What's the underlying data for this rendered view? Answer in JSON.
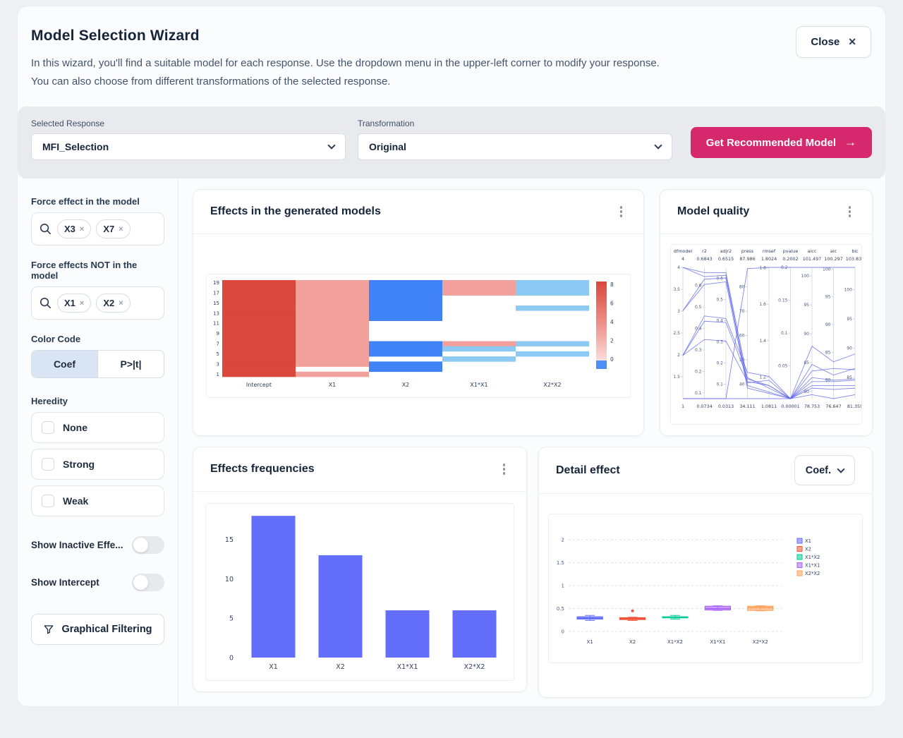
{
  "header": {
    "title": "Model Selection Wizard",
    "description_line1": "In this wizard, you'll find a suitable model for each response. Use the dropdown menu in the upper-left corner to modify your response.",
    "description_line2": "You can also choose from different transformations of the selected response.",
    "close_label": "Close",
    "close_icon": "✕"
  },
  "controls": {
    "accent_color": "#d6296d",
    "selected_response": {
      "label": "Selected Response",
      "value": "MFI_Selection"
    },
    "transformation": {
      "label": "Transformation",
      "value": "Original"
    },
    "get_model_label": "Get Recommended  Model",
    "get_model_arrow": "→"
  },
  "sidebar": {
    "force_in": {
      "label": "Force effect in the model",
      "chips": [
        "X3",
        "X7"
      ],
      "remove_icon": "×"
    },
    "force_out": {
      "label": "Force effects NOT in the model",
      "chips": [
        "X1",
        "X2"
      ],
      "remove_icon": "×"
    },
    "color_code": {
      "label": "Color Code",
      "options": [
        "Coef",
        "P>|t|"
      ],
      "selected": "Coef"
    },
    "heredity": {
      "label": "Heredity",
      "options": [
        {
          "label": "None",
          "checked": false
        },
        {
          "label": "Strong",
          "checked": false
        },
        {
          "label": "Weak",
          "checked": false
        }
      ]
    },
    "toggles": [
      {
        "label": "Show Inactive Effe...",
        "on": false
      },
      {
        "label": "Show Intercept",
        "on": false
      }
    ],
    "graphical_filtering_label": "Graphical Filtering"
  },
  "cards": {
    "effects_models": {
      "title": "Effects in the generated models"
    },
    "model_quality": {
      "title": "Model quality"
    },
    "effects_frequencies": {
      "title": "Effects frequencies"
    },
    "detail_effect": {
      "title": "Detail effect",
      "dropdown_value": "Coef."
    }
  },
  "chart_data": [
    {
      "id": "effects-heatmap",
      "type": "heatmap",
      "title": "Effects in the generated models",
      "x_categories": [
        "Intercept",
        "X1",
        "X2",
        "X1*X1",
        "X2*X2"
      ],
      "y_tick_labels": [
        19,
        17,
        15,
        13,
        11,
        9,
        7,
        5,
        3,
        1
      ],
      "n_rows": 19,
      "color_key": {
        "r": "#d9473d",
        "p": "#f1a09b",
        "b": "#3f83f6",
        "l": "#8cc9f3",
        "w": "#ffffff"
      },
      "matrix_rows_top_to_bottom": [
        [
          "r",
          "p",
          "b",
          "p",
          "l"
        ],
        [
          "r",
          "p",
          "b",
          "p",
          "l"
        ],
        [
          "r",
          "p",
          "b",
          "p",
          "l"
        ],
        [
          "r",
          "p",
          "b",
          "w",
          "w"
        ],
        [
          "r",
          "p",
          "b",
          "w",
          "w"
        ],
        [
          "r",
          "p",
          "b",
          "w",
          "l"
        ],
        [
          "r",
          "p",
          "b",
          "w",
          "w"
        ],
        [
          "r",
          "p",
          "b",
          "w",
          "w"
        ],
        [
          "r",
          "p",
          "w",
          "w",
          "w"
        ],
        [
          "r",
          "p",
          "w",
          "w",
          "w"
        ],
        [
          "r",
          "p",
          "w",
          "w",
          "w"
        ],
        [
          "r",
          "p",
          "w",
          "w",
          "w"
        ],
        [
          "r",
          "p",
          "b",
          "p",
          "l"
        ],
        [
          "r",
          "p",
          "b",
          "l",
          "w"
        ],
        [
          "r",
          "p",
          "b",
          "w",
          "l"
        ],
        [
          "r",
          "p",
          "w",
          "l",
          "w"
        ],
        [
          "r",
          "p",
          "b",
          "w",
          "w"
        ],
        [
          "r",
          "w",
          "b",
          "w",
          "w"
        ],
        [
          "r",
          "p",
          "w",
          "w",
          "w"
        ]
      ],
      "colorbar": {
        "ticks": [
          8,
          6,
          4,
          2,
          0
        ],
        "top_color": "#d9473d",
        "mid_color": "#ee938c",
        "zero_color": "#fbdcda",
        "below_zero_color": "#4a90f5"
      }
    },
    {
      "id": "model-quality-parcoords",
      "type": "line",
      "variant": "parallel-coordinates",
      "line_color": "#5a62e8",
      "axes": [
        {
          "name": "dfmodel",
          "max_label": "4",
          "min_label": "1",
          "range": [
            1,
            4
          ],
          "ticks": [
            1.5,
            2,
            2.5,
            3,
            3.5,
            4
          ]
        },
        {
          "name": "r2",
          "max_label": "0.6843",
          "min_label": "0.0734",
          "range": [
            0.0734,
            0.6843
          ],
          "ticks": [
            0.1,
            0.2,
            0.3,
            0.4,
            0.5,
            0.6
          ]
        },
        {
          "name": "adjr2",
          "max_label": "0.6515",
          "min_label": "0.0313",
          "range": [
            0.0313,
            0.6515
          ],
          "ticks": [
            0.1,
            0.2,
            0.3,
            0.4,
            0.5,
            0.6
          ]
        },
        {
          "name": "press",
          "max_label": "87.986",
          "min_label": "34.111",
          "range": [
            34.111,
            87.986
          ],
          "ticks": [
            40,
            50,
            60,
            70,
            80
          ]
        },
        {
          "name": "rmsef",
          "max_label": "1.8024",
          "min_label": "1.0811",
          "range": [
            1.0811,
            1.8024
          ],
          "ticks": [
            1.2,
            1.4,
            1.6,
            1.8
          ]
        },
        {
          "name": "pvalue",
          "max_label": "0.2002",
          "min_label": "0.00001",
          "range": [
            1e-05,
            0.2002
          ],
          "ticks": [
            0.05,
            0.1,
            0.15,
            0.2
          ]
        },
        {
          "name": "aicc",
          "max_label": "101.497",
          "min_label": "78.753",
          "range": [
            78.753,
            101.497
          ],
          "ticks": [
            80,
            85,
            90,
            95,
            100
          ]
        },
        {
          "name": "aic",
          "max_label": "100.297",
          "min_label": "76.647",
          "range": [
            76.647,
            100.297
          ],
          "ticks": [
            80,
            85,
            90,
            95,
            100
          ]
        },
        {
          "name": "bic",
          "max_label": "103.832",
          "min_label": "81.359",
          "range": [
            81.359,
            103.832
          ],
          "ticks": [
            85,
            90,
            95,
            100
          ]
        }
      ],
      "lines_normalized": [
        [
          1.0,
          0.96,
          0.96,
          0.15,
          0.1,
          0.0,
          0.08,
          0.07,
          0.08
        ],
        [
          1.0,
          0.93,
          0.94,
          0.1,
          0.05,
          0.0,
          0.13,
          0.13,
          0.14
        ],
        [
          0.67,
          0.91,
          0.92,
          0.12,
          0.14,
          0.0,
          0.1,
          0.1,
          0.1
        ],
        [
          0.67,
          0.87,
          0.89,
          0.08,
          0.04,
          0.0,
          0.21,
          0.23,
          0.22
        ],
        [
          0.33,
          0.63,
          0.61,
          0.2,
          0.17,
          0.0,
          0.4,
          0.28,
          0.34
        ],
        [
          0.33,
          0.59,
          0.58,
          0.16,
          0.08,
          0.0,
          0.26,
          0.18,
          0.23
        ],
        [
          0.33,
          0.45,
          0.44,
          0.13,
          0.1,
          0.0,
          0.16,
          0.14,
          0.15
        ],
        [
          0.0,
          0.0,
          0.0,
          0.99,
          1.0,
          1.0,
          1.0,
          1.0,
          1.0
        ],
        [
          0.0,
          0.0,
          0.0,
          0.0,
          0.0,
          0.0,
          0.03,
          0.0,
          0.03
        ]
      ]
    },
    {
      "id": "effects-frequencies-bar",
      "type": "bar",
      "title": "Effects frequencies",
      "categories": [
        "X1",
        "X2",
        "X1*X1",
        "X2*X2"
      ],
      "values": [
        18,
        13,
        6,
        6
      ],
      "yticks": [
        0,
        5,
        10,
        15
      ],
      "ylim": [
        0,
        19
      ],
      "bar_color": "#636efa"
    },
    {
      "id": "detail-effect-box",
      "type": "box",
      "title": "Detail effect",
      "categories": [
        "X1",
        "X2",
        "X1*X2",
        "X1*X1",
        "X2*X2"
      ],
      "yticks": [
        0,
        0.5,
        1,
        1.5,
        2
      ],
      "ylim": [
        -0.2,
        2.25
      ],
      "legend": [
        "X1",
        "X2",
        "X1*X2",
        "X1*X1",
        "X2*X2"
      ],
      "series": [
        {
          "name": "X1",
          "color": "#636efa",
          "lo": 0.24,
          "q1": 0.27,
          "median": 0.29,
          "q3": 0.32,
          "hi": 0.35,
          "outliers": []
        },
        {
          "name": "X2",
          "color": "#ef553b",
          "lo": 0.24,
          "q1": 0.26,
          "median": 0.28,
          "q3": 0.3,
          "hi": 0.31,
          "outliers": [
            0.45
          ]
        },
        {
          "name": "X1*X2",
          "color": "#00cc96",
          "lo": 0.27,
          "q1": 0.3,
          "median": 0.31,
          "q3": 0.32,
          "hi": 0.35,
          "outliers": []
        },
        {
          "name": "X1*X1",
          "color": "#ab63fa",
          "lo": 0.46,
          "q1": 0.47,
          "median": 0.5,
          "q3": 0.55,
          "hi": 0.56,
          "outliers": []
        },
        {
          "name": "X2*X2",
          "color": "#ffa15a",
          "lo": 0.45,
          "q1": 0.46,
          "median": 0.52,
          "q3": 0.55,
          "hi": 0.56,
          "outliers": []
        }
      ]
    }
  ]
}
